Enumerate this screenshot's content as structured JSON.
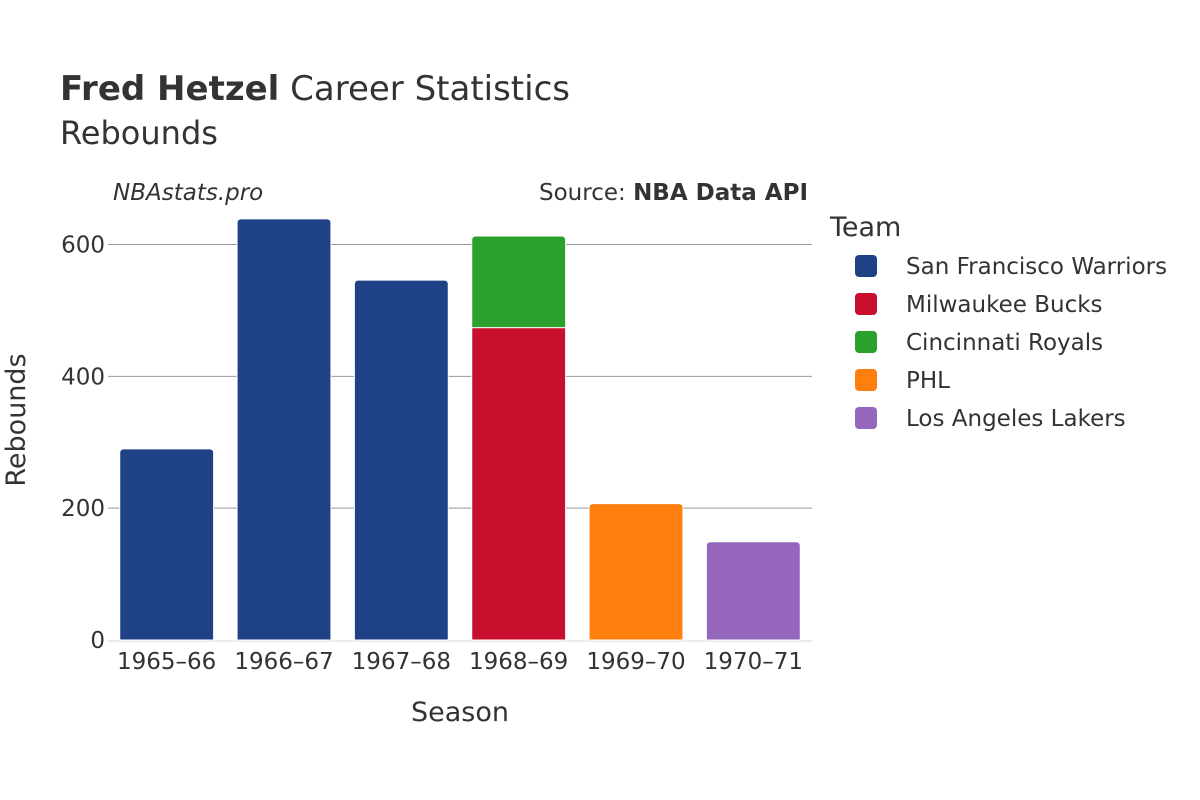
{
  "header": {
    "title_bold": "Fred Hetzel",
    "title_rest": " Career Statistics",
    "subtitle": "Rebounds"
  },
  "watermark": "NBAstats.pro",
  "source": {
    "prefix": "Source: ",
    "name": "NBA Data API"
  },
  "chart_data": {
    "type": "bar",
    "stacked": true,
    "categories": [
      "1965–66",
      "1966–67",
      "1967–68",
      "1968–69",
      "1969–70",
      "1970–71"
    ],
    "series": [
      {
        "name": "San Francisco Warriors",
        "color": "#1f4287",
        "values": [
          290,
          639,
          546,
          0,
          0,
          0
        ]
      },
      {
        "name": "Milwaukee Bucks",
        "color": "#c8102e",
        "values": [
          0,
          0,
          0,
          474,
          0,
          0
        ]
      },
      {
        "name": "Cincinnati Royals",
        "color": "#2ca02c",
        "values": [
          0,
          0,
          0,
          139,
          0,
          0
        ]
      },
      {
        "name": "PHL",
        "color": "#ff7f0e",
        "values": [
          0,
          0,
          0,
          0,
          207,
          0
        ]
      },
      {
        "name": "Los Angeles Lakers",
        "color": "#9467bd",
        "values": [
          0,
          0,
          0,
          0,
          0,
          149
        ]
      }
    ],
    "xlabel": "Season",
    "ylabel": "Rebounds",
    "ylim": [
      0,
      660
    ],
    "yticks": [
      0,
      200,
      400,
      600
    ],
    "grid": true,
    "legend_title": "Team",
    "legend_position": "right"
  }
}
